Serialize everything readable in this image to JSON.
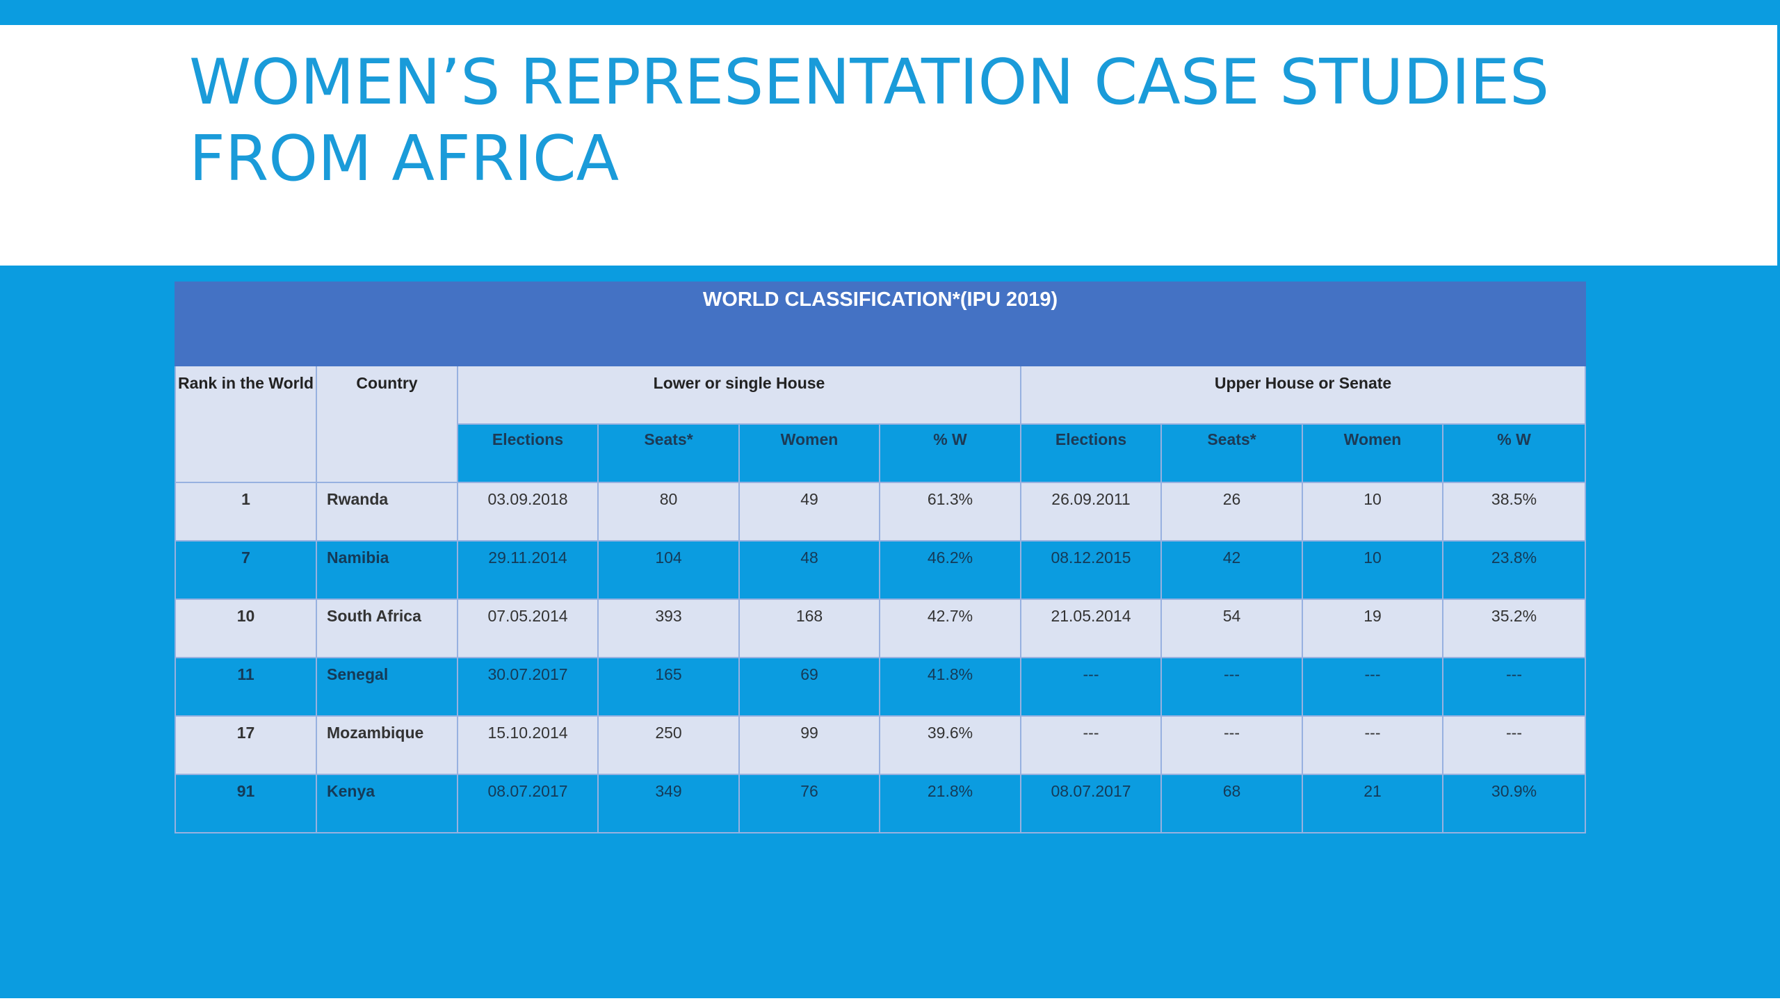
{
  "slide": {
    "title": "Women’s Representation Case Studies from Africa"
  },
  "table": {
    "banner": "WORLD CLASSIFICATION*(IPU 2019)",
    "headers": {
      "rank": "Rank in the World",
      "country": "Country",
      "lower_house": "Lower or single House",
      "upper_house": "Upper House or Senate"
    },
    "subheaders": [
      "Elections",
      "Seats*",
      "Women",
      "% W",
      "Elections",
      "Seats*",
      "Women",
      "% W"
    ],
    "rows": [
      {
        "rank": "1",
        "country": "Rwanda",
        "cells": [
          "03.09.2018",
          "80",
          "49",
          "61.3%",
          "26.09.2011",
          "26",
          "10",
          "38.5%"
        ]
      },
      {
        "rank": "7",
        "country": "Namibia",
        "cells": [
          "29.11.2014",
          "104",
          "48",
          "46.2%",
          "08.12.2015",
          "42",
          "10",
          "23.8%"
        ]
      },
      {
        "rank": "10",
        "country": "South Africa",
        "cells": [
          "07.05.2014",
          "393",
          "168",
          "42.7%",
          "21.05.2014",
          "54",
          "19",
          "35.2%"
        ]
      },
      {
        "rank": "11",
        "country": "Senegal",
        "cells": [
          "30.07.2017",
          "165",
          "69",
          "41.8%",
          "---",
          "---",
          "---",
          "---"
        ]
      },
      {
        "rank": "17",
        "country": "Mozambique",
        "cells": [
          "15.10.2014",
          "250",
          "99",
          "39.6%",
          "---",
          "---",
          "---",
          "---"
        ]
      },
      {
        "rank": "91",
        "country": "Kenya",
        "cells": [
          "08.07.2017",
          "349",
          "76",
          "21.8%",
          "08.07.2017",
          "68",
          "21",
          "30.9%"
        ]
      }
    ]
  },
  "colors": {
    "background": "#0b9ce0",
    "title": "#1a9bd9",
    "banner": "#4472c4",
    "light_row": "#dbe2f2"
  }
}
